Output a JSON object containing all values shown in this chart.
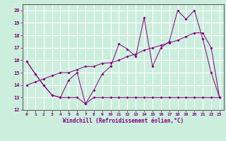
{
  "x": [
    0,
    1,
    2,
    3,
    4,
    5,
    6,
    7,
    8,
    9,
    10,
    11,
    12,
    13,
    14,
    15,
    16,
    17,
    18,
    19,
    20,
    21,
    22,
    23
  ],
  "y_main": [
    15.9,
    14.9,
    14.0,
    13.2,
    13.0,
    14.4,
    15.0,
    12.5,
    13.6,
    14.9,
    15.5,
    17.3,
    16.9,
    16.3,
    19.4,
    15.5,
    17.0,
    17.5,
    20.0,
    19.3,
    20.0,
    17.7,
    15.0,
    13.0
  ],
  "y_min": [
    15.9,
    14.9,
    14.0,
    13.2,
    13.0,
    13.0,
    13.0,
    12.5,
    13.0,
    13.0,
    13.0,
    13.0,
    13.0,
    13.0,
    13.0,
    13.0,
    13.0,
    13.0,
    13.0,
    13.0,
    13.0,
    13.0,
    13.0,
    13.0
  ],
  "y_trend": [
    14.0,
    14.25,
    14.5,
    14.75,
    15.0,
    15.0,
    15.25,
    15.5,
    15.5,
    15.75,
    15.8,
    16.0,
    16.3,
    16.5,
    16.8,
    17.0,
    17.2,
    17.4,
    17.6,
    17.9,
    18.2,
    18.2,
    17.0,
    13.0
  ],
  "line_color": "#800080",
  "bg_color": "#cceedd",
  "grid_color": "#ffffff",
  "text_color": "#800080",
  "xlabel": "Windchill (Refroidissement éolien,°C)",
  "ylim": [
    12,
    20.5
  ],
  "xlim": [
    -0.5,
    23.5
  ],
  "yticks": [
    12,
    13,
    14,
    15,
    16,
    17,
    18,
    19,
    20
  ],
  "xticks": [
    0,
    1,
    2,
    3,
    4,
    5,
    6,
    7,
    8,
    9,
    10,
    11,
    12,
    13,
    14,
    15,
    16,
    17,
    18,
    19,
    20,
    21,
    22,
    23
  ]
}
